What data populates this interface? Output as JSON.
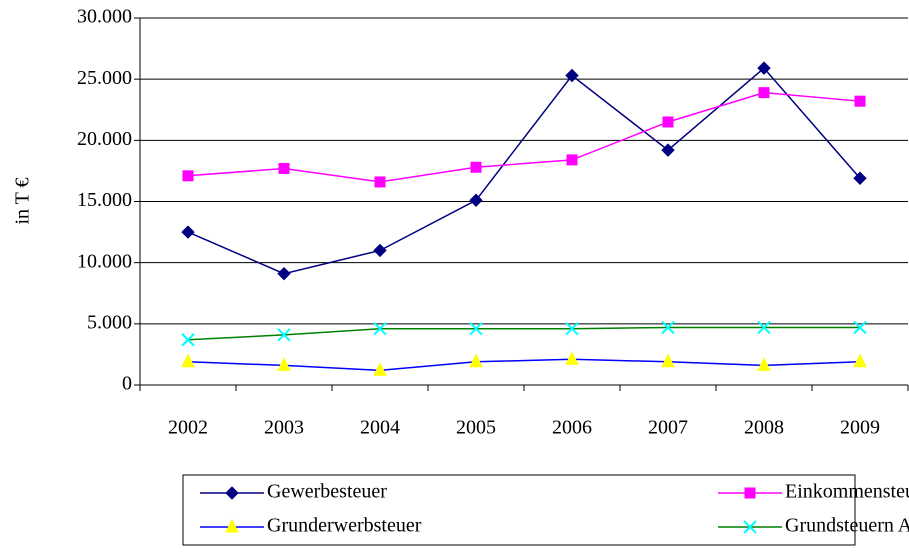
{
  "chart_data": {
    "type": "line",
    "ylabel": "in T €",
    "categories": [
      "2002",
      "2003",
      "2004",
      "2005",
      "2006",
      "2007",
      "2008",
      "2009"
    ],
    "series": [
      {
        "name": "Gewerbesteuer",
        "color": "#000080",
        "marker": "diamond",
        "marker_color": "#000080",
        "values": [
          12500,
          9100,
          11000,
          15100,
          25300,
          19200,
          25900,
          16900
        ]
      },
      {
        "name": "Einkommensteueranteile",
        "color": "#ff00ff",
        "marker": "square",
        "marker_color": "#ff00ff",
        "values": [
          17100,
          17700,
          16600,
          17800,
          18400,
          21500,
          23900,
          23200
        ]
      },
      {
        "name": "Grunderwerbsteuer",
        "color": "#0000ff",
        "marker": "triangle",
        "marker_color": "#ffff00",
        "values": [
          1900,
          1600,
          1200,
          1900,
          2100,
          1900,
          1600,
          1900
        ]
      },
      {
        "name": "Grundsteuern A und B",
        "color": "#008000",
        "marker": "x",
        "marker_color": "#00ffff",
        "values": [
          3700,
          4100,
          4600,
          4600,
          4600,
          4700,
          4700,
          4700
        ]
      }
    ],
    "ylim": [
      0,
      30000
    ],
    "yticks": [
      0,
      {
        "value": 5000,
        "label": "5.000"
      },
      {
        "value": 10000,
        "label": "10.000"
      },
      {
        "value": 15000,
        "label": "15.000"
      },
      {
        "value": 20000,
        "label": "20.000"
      },
      {
        "value": 25000,
        "label": "25.000"
      },
      {
        "value": 30000,
        "label": "30.000"
      }
    ],
    "grid": true,
    "legend": "bottom"
  }
}
